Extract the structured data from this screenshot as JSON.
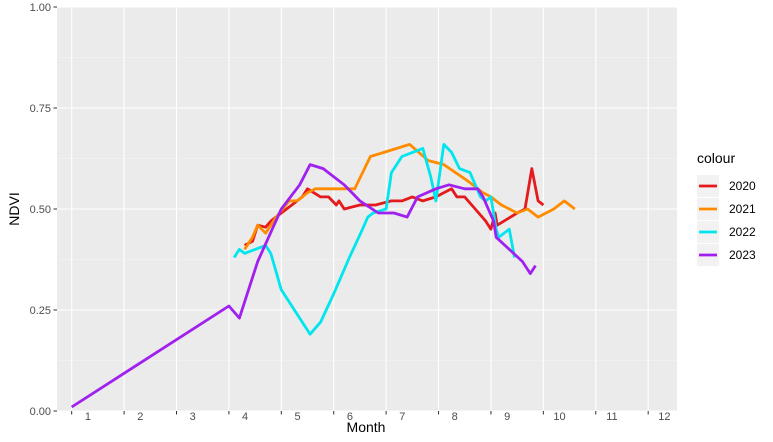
{
  "chart_data": {
    "type": "line",
    "xlabel": "Month",
    "ylabel": "NDVI",
    "xlim": [
      0.72,
      12.55
    ],
    "ylim": [
      0,
      1
    ],
    "x_tick_labels": [
      "1",
      "2",
      "3",
      "4",
      "5",
      "6",
      "7",
      "8",
      "9",
      "10",
      "11",
      "12"
    ],
    "y_tick_labels": [
      "0.00",
      "0.25",
      "0.50",
      "0.75",
      "1.00"
    ],
    "y_ticks": [
      0,
      0.25,
      0.5,
      0.75,
      1
    ],
    "grid": true,
    "legend": {
      "title": "colour",
      "position": "right"
    },
    "series": [
      {
        "name": "2020",
        "color": "#E41A1C",
        "points": [
          [
            4.3,
            0.41
          ],
          [
            4.45,
            0.42
          ],
          [
            4.55,
            0.46
          ],
          [
            4.7,
            0.455
          ],
          [
            4.8,
            0.47
          ],
          [
            5.0,
            0.49
          ],
          [
            5.2,
            0.51
          ],
          [
            5.4,
            0.53
          ],
          [
            5.5,
            0.55
          ],
          [
            5.75,
            0.53
          ],
          [
            5.9,
            0.53
          ],
          [
            6.05,
            0.51
          ],
          [
            6.1,
            0.52
          ],
          [
            6.2,
            0.5
          ],
          [
            6.5,
            0.51
          ],
          [
            6.8,
            0.51
          ],
          [
            7.1,
            0.52
          ],
          [
            7.3,
            0.52
          ],
          [
            7.5,
            0.53
          ],
          [
            7.7,
            0.52
          ],
          [
            7.95,
            0.53
          ],
          [
            8.1,
            0.54
          ],
          [
            8.25,
            0.55
          ],
          [
            8.35,
            0.53
          ],
          [
            8.5,
            0.53
          ],
          [
            8.7,
            0.5
          ],
          [
            8.9,
            0.47
          ],
          [
            9.0,
            0.45
          ],
          [
            9.08,
            0.49
          ],
          [
            9.12,
            0.46
          ],
          [
            9.5,
            0.49
          ],
          [
            9.65,
            0.5
          ],
          [
            9.78,
            0.6
          ],
          [
            9.9,
            0.52
          ],
          [
            10.0,
            0.51
          ]
        ]
      },
      {
        "name": "2021",
        "color": "#FF8C00",
        "points": [
          [
            4.3,
            0.4
          ],
          [
            4.45,
            0.43
          ],
          [
            4.55,
            0.46
          ],
          [
            4.7,
            0.44
          ],
          [
            4.9,
            0.48
          ],
          [
            5.15,
            0.52
          ],
          [
            5.3,
            0.52
          ],
          [
            5.5,
            0.54
          ],
          [
            5.65,
            0.55
          ],
          [
            6.0,
            0.55
          ],
          [
            6.4,
            0.55
          ],
          [
            6.7,
            0.63
          ],
          [
            7.45,
            0.66
          ],
          [
            7.8,
            0.62
          ],
          [
            8.1,
            0.61
          ],
          [
            8.55,
            0.57
          ],
          [
            8.85,
            0.54
          ],
          [
            9.0,
            0.53
          ],
          [
            9.2,
            0.51
          ],
          [
            9.5,
            0.49
          ],
          [
            9.7,
            0.5
          ],
          [
            9.9,
            0.48
          ],
          [
            10.2,
            0.5
          ],
          [
            10.4,
            0.52
          ],
          [
            10.6,
            0.5
          ]
        ]
      },
      {
        "name": "2022",
        "color": "#00E5EE",
        "points": [
          [
            4.1,
            0.38
          ],
          [
            4.2,
            0.4
          ],
          [
            4.3,
            0.39
          ],
          [
            4.5,
            0.4
          ],
          [
            4.7,
            0.41
          ],
          [
            4.8,
            0.39
          ],
          [
            5.0,
            0.3
          ],
          [
            5.3,
            0.24
          ],
          [
            5.55,
            0.19
          ],
          [
            5.75,
            0.22
          ],
          [
            6.0,
            0.29
          ],
          [
            6.3,
            0.38
          ],
          [
            6.55,
            0.45
          ],
          [
            6.65,
            0.48
          ],
          [
            6.75,
            0.49
          ],
          [
            7.0,
            0.5
          ],
          [
            7.1,
            0.59
          ],
          [
            7.3,
            0.63
          ],
          [
            7.7,
            0.65
          ],
          [
            7.85,
            0.58
          ],
          [
            7.95,
            0.52
          ],
          [
            8.1,
            0.66
          ],
          [
            8.25,
            0.64
          ],
          [
            8.4,
            0.6
          ],
          [
            8.6,
            0.59
          ],
          [
            8.8,
            0.53
          ],
          [
            8.9,
            0.52
          ],
          [
            9.0,
            0.53
          ],
          [
            9.1,
            0.45
          ],
          [
            9.15,
            0.43
          ],
          [
            9.25,
            0.44
          ],
          [
            9.35,
            0.45
          ],
          [
            9.45,
            0.38
          ]
        ]
      },
      {
        "name": "2023",
        "color": "#A020F0",
        "points": [
          [
            1.0,
            0.01
          ],
          [
            4.0,
            0.26
          ],
          [
            4.2,
            0.23
          ],
          [
            4.55,
            0.37
          ],
          [
            5.0,
            0.5
          ],
          [
            5.35,
            0.56
          ],
          [
            5.55,
            0.61
          ],
          [
            5.8,
            0.6
          ],
          [
            6.2,
            0.56
          ],
          [
            6.5,
            0.52
          ],
          [
            6.85,
            0.49
          ],
          [
            7.15,
            0.49
          ],
          [
            7.4,
            0.48
          ],
          [
            7.6,
            0.53
          ],
          [
            7.95,
            0.55
          ],
          [
            8.2,
            0.56
          ],
          [
            8.5,
            0.55
          ],
          [
            8.75,
            0.55
          ],
          [
            8.85,
            0.53
          ],
          [
            8.95,
            0.5
          ],
          [
            9.05,
            0.47
          ],
          [
            9.1,
            0.43
          ],
          [
            9.35,
            0.4
          ],
          [
            9.6,
            0.37
          ],
          [
            9.75,
            0.34
          ],
          [
            9.85,
            0.36
          ]
        ]
      }
    ]
  }
}
